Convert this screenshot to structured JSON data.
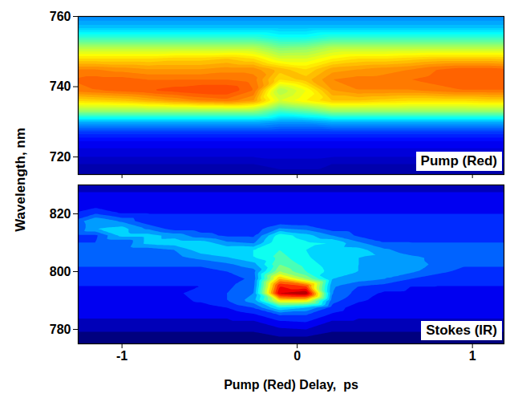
{
  "chart_data": [
    {
      "type": "heatmap",
      "annotation": "Pump (Red)",
      "ylabel": "Wavelength, nm",
      "color": "jet",
      "tick_labels": "y",
      "xlim": [
        -1.25,
        1.18
      ],
      "xticks": [
        -1,
        0,
        1
      ],
      "ylim": [
        715,
        760
      ],
      "yticks": [
        720,
        740,
        760
      ],
      "x": [
        -1.3,
        -1.15,
        -1.0,
        -0.85,
        -0.7,
        -0.55,
        -0.4,
        -0.25,
        -0.1,
        0.05,
        0.2,
        0.35,
        0.5,
        0.65,
        0.8,
        0.95,
        1.1,
        1.25
      ],
      "y": [
        715,
        718,
        721,
        724,
        727,
        730,
        733,
        736,
        739,
        742,
        745,
        748,
        751,
        754,
        757,
        760
      ],
      "values": [
        [
          1.4,
          1.4,
          1.5,
          1.5,
          1.5,
          1.5,
          1.5,
          1.5,
          1.5,
          1.5,
          1.5,
          1.5,
          1.5,
          1.5,
          1.5,
          1.4,
          1.4,
          1.4
        ],
        [
          1.6,
          1.6,
          1.6,
          1.6,
          1.6,
          1.6,
          1.6,
          1.6,
          1.7,
          1.7,
          1.6,
          1.6,
          1.6,
          1.6,
          1.6,
          1.6,
          1.6,
          1.6
        ],
        [
          1.9,
          1.9,
          1.9,
          1.9,
          1.9,
          1.9,
          1.9,
          1.9,
          1.9,
          1.9,
          1.9,
          1.9,
          1.9,
          1.9,
          1.9,
          1.9,
          1.9,
          1.9
        ],
        [
          2.1,
          2.1,
          2.1,
          2.1,
          2.1,
          2.1,
          2.1,
          2.1,
          2.1,
          2.1,
          2.1,
          2.1,
          2.1,
          2.1,
          2.1,
          2.1,
          2.1,
          2.1
        ],
        [
          2.7,
          2.7,
          2.7,
          2.7,
          2.7,
          2.7,
          2.7,
          2.7,
          2.7,
          2.7,
          2.7,
          2.7,
          2.7,
          2.7,
          2.7,
          2.7,
          2.7,
          2.7
        ],
        [
          3.8,
          3.8,
          3.8,
          3.8,
          3.8,
          3.8,
          3.8,
          3.8,
          3.6,
          3.6,
          3.8,
          3.8,
          3.8,
          3.8,
          3.8,
          3.8,
          3.8,
          3.8
        ],
        [
          5.8,
          5.8,
          5.8,
          5.8,
          5.8,
          5.8,
          5.8,
          5.8,
          5.0,
          5.3,
          5.8,
          5.8,
          5.8,
          5.8,
          5.8,
          5.8,
          5.8,
          5.8
        ],
        [
          7.0,
          7.1,
          7.2,
          7.4,
          7.6,
          7.8,
          7.9,
          7.6,
          6.4,
          6.8,
          7.2,
          7.2,
          7.1,
          7.0,
          7.0,
          7.0,
          7.1,
          7.1
        ],
        [
          7.9,
          8.0,
          8.1,
          8.2,
          8.3,
          8.4,
          8.4,
          8.0,
          6.0,
          6.6,
          7.6,
          7.8,
          7.8,
          7.8,
          7.9,
          8.0,
          8.0,
          8.0
        ],
        [
          8.0,
          8.1,
          8.1,
          8.0,
          8.0,
          8.0,
          8.0,
          7.9,
          7.0,
          7.3,
          7.8,
          7.9,
          7.9,
          8.0,
          8.1,
          8.2,
          8.2,
          8.1
        ],
        [
          7.8,
          7.8,
          7.7,
          7.6,
          7.6,
          7.6,
          7.7,
          7.7,
          7.3,
          7.0,
          7.5,
          7.6,
          7.7,
          7.8,
          8.0,
          8.1,
          8.1,
          8.0
        ],
        [
          7.0,
          7.0,
          7.0,
          7.0,
          7.1,
          7.1,
          7.2,
          7.0,
          6.4,
          6.4,
          6.8,
          7.0,
          7.0,
          7.1,
          7.2,
          7.2,
          7.2,
          7.1
        ],
        [
          6.1,
          6.1,
          6.1,
          6.1,
          6.1,
          6.1,
          6.1,
          6.1,
          5.6,
          5.7,
          6.1,
          6.1,
          6.1,
          6.1,
          6.1,
          6.1,
          6.1,
          6.1
        ],
        [
          4.9,
          4.9,
          4.9,
          4.9,
          4.9,
          4.9,
          4.9,
          4.9,
          4.6,
          4.6,
          4.9,
          4.9,
          4.9,
          4.9,
          4.9,
          4.9,
          4.9,
          4.9
        ],
        [
          3.9,
          3.9,
          3.9,
          3.9,
          3.9,
          3.9,
          3.9,
          3.9,
          3.9,
          3.9,
          3.9,
          3.9,
          3.9,
          3.9,
          3.9,
          3.9,
          3.9,
          3.9
        ],
        [
          3.4,
          3.4,
          3.4,
          3.4,
          3.4,
          3.4,
          3.4,
          3.4,
          3.4,
          3.4,
          3.4,
          3.4,
          3.4,
          3.4,
          3.4,
          3.4,
          3.4,
          3.4
        ]
      ]
    },
    {
      "type": "heatmap",
      "annotation": "Stokes (IR)",
      "xlabel": "Pump (Red) Delay,  ps",
      "color": "jet",
      "xlim": [
        -1.25,
        1.18
      ],
      "xticks": [
        -1,
        0,
        1
      ],
      "ylim": [
        775,
        830
      ],
      "yticks": [
        780,
        800,
        820
      ],
      "x": [
        -1.3,
        -1.15,
        -1.0,
        -0.85,
        -0.7,
        -0.55,
        -0.4,
        -0.25,
        -0.1,
        0.05,
        0.2,
        0.35,
        0.5,
        0.65,
        0.8,
        0.95,
        1.1,
        1.25
      ],
      "y": [
        775,
        777.5,
        780,
        782.5,
        785,
        787.5,
        790,
        792.5,
        795,
        797.5,
        800,
        802.5,
        805,
        807.5,
        810,
        812.5,
        815,
        817.5,
        820,
        822.5,
        825,
        827.5,
        830
      ],
      "values": [
        [
          1.0,
          1.0,
          1.0,
          1.0,
          1.0,
          1.0,
          1.0,
          1.0,
          1.2,
          1.2,
          1.0,
          1.0,
          1.0,
          1.0,
          1.0,
          1.0,
          1.0,
          1.0
        ],
        [
          1.3,
          1.3,
          1.3,
          1.3,
          1.3,
          1.3,
          1.3,
          1.3,
          1.5,
          1.5,
          1.3,
          1.3,
          1.3,
          1.3,
          1.3,
          1.3,
          1.3,
          1.3
        ],
        [
          1.6,
          1.6,
          1.6,
          1.6,
          1.6,
          1.6,
          1.6,
          1.6,
          1.9,
          2.0,
          1.6,
          1.6,
          1.6,
          1.6,
          1.6,
          1.6,
          1.6,
          1.6
        ],
        [
          1.9,
          1.9,
          1.9,
          1.9,
          1.9,
          1.9,
          1.9,
          1.9,
          2.4,
          2.5,
          1.9,
          1.9,
          1.9,
          1.9,
          1.9,
          1.9,
          1.9,
          1.9
        ],
        [
          2.1,
          2.1,
          2.1,
          2.1,
          2.1,
          2.1,
          2.1,
          2.4,
          3.0,
          3.0,
          2.4,
          2.1,
          2.1,
          2.1,
          2.1,
          2.1,
          2.1,
          2.1
        ],
        [
          2.2,
          2.2,
          2.2,
          2.2,
          2.2,
          2.2,
          2.5,
          3.0,
          4.5,
          4.0,
          2.8,
          2.2,
          2.2,
          2.2,
          2.2,
          2.2,
          2.2,
          2.2
        ],
        [
          2.3,
          2.3,
          2.3,
          2.3,
          2.3,
          2.6,
          3.0,
          3.8,
          7.0,
          7.0,
          3.2,
          2.6,
          2.3,
          2.3,
          2.3,
          2.3,
          2.3,
          2.3
        ],
        [
          2.4,
          2.4,
          2.4,
          2.4,
          2.4,
          2.7,
          3.0,
          3.5,
          9.5,
          10.0,
          3.5,
          2.8,
          2.4,
          2.4,
          2.4,
          2.4,
          2.4,
          2.4
        ],
        [
          2.5,
          2.5,
          2.5,
          2.5,
          2.5,
          2.5,
          2.9,
          3.3,
          9.0,
          8.5,
          3.6,
          3.0,
          2.8,
          2.5,
          2.5,
          2.5,
          2.5,
          2.5
        ],
        [
          2.6,
          2.6,
          2.6,
          2.6,
          2.6,
          2.6,
          2.6,
          3.2,
          7.5,
          6.0,
          4.0,
          3.8,
          3.5,
          3.0,
          2.6,
          2.6,
          2.6,
          2.6
        ],
        [
          2.8,
          2.8,
          2.8,
          2.8,
          2.8,
          2.8,
          3.0,
          3.3,
          6.0,
          5.0,
          4.3,
          4.0,
          3.6,
          3.6,
          3.2,
          2.8,
          2.8,
          2.8
        ],
        [
          3.1,
          3.1,
          3.1,
          3.1,
          3.1,
          3.1,
          3.4,
          3.8,
          5.5,
          4.8,
          4.2,
          4.0,
          3.9,
          3.7,
          3.4,
          3.1,
          3.1,
          3.1
        ],
        [
          3.4,
          3.4,
          3.4,
          3.4,
          3.4,
          3.7,
          4.0,
          4.5,
          5.2,
          4.6,
          4.0,
          4.0,
          3.9,
          3.6,
          3.4,
          3.4,
          3.4,
          3.4
        ],
        [
          3.2,
          3.2,
          3.2,
          3.2,
          3.5,
          4.3,
          4.4,
          4.5,
          5.0,
          4.5,
          4.3,
          4.2,
          3.6,
          3.2,
          3.2,
          3.2,
          3.2,
          3.2
        ],
        [
          3.0,
          3.0,
          3.0,
          4.2,
          4.3,
          4.3,
          3.6,
          3.4,
          5.0,
          4.6,
          4.5,
          3.6,
          3.0,
          3.0,
          3.0,
          3.0,
          3.0,
          3.0
        ],
        [
          2.9,
          2.9,
          4.2,
          4.2,
          3.8,
          3.2,
          2.9,
          2.9,
          4.8,
          4.2,
          3.5,
          2.9,
          2.9,
          2.9,
          2.9,
          2.9,
          2.9,
          2.9
        ],
        [
          2.7,
          4.0,
          4.2,
          3.4,
          2.7,
          2.7,
          2.7,
          2.7,
          3.5,
          3.3,
          2.7,
          2.7,
          2.7,
          2.7,
          2.7,
          2.7,
          2.7,
          2.7
        ],
        [
          2.9,
          4.0,
          3.4,
          2.6,
          2.6,
          2.6,
          2.6,
          2.6,
          2.6,
          2.6,
          2.6,
          2.6,
          2.6,
          2.6,
          2.6,
          2.6,
          2.6,
          2.6
        ],
        [
          2.5,
          3.0,
          2.5,
          2.5,
          2.5,
          2.5,
          2.5,
          2.5,
          2.5,
          2.5,
          2.5,
          2.5,
          2.5,
          2.5,
          2.5,
          2.5,
          2.5,
          2.5
        ],
        [
          2.4,
          2.4,
          2.4,
          2.4,
          2.4,
          2.4,
          2.4,
          2.4,
          2.4,
          2.4,
          2.4,
          2.4,
          2.4,
          2.4,
          2.4,
          2.4,
          2.4,
          2.4
        ],
        [
          2.2,
          2.2,
          2.2,
          2.2,
          2.2,
          2.2,
          2.2,
          2.2,
          2.2,
          2.2,
          2.2,
          2.2,
          2.2,
          2.2,
          2.2,
          2.2,
          2.2,
          2.2
        ],
        [
          2.0,
          2.0,
          2.0,
          2.0,
          2.0,
          2.0,
          2.0,
          2.0,
          2.0,
          2.0,
          2.0,
          2.0,
          2.0,
          2.0,
          2.0,
          2.0,
          2.0,
          2.0
        ],
        [
          1.8,
          1.8,
          1.8,
          1.8,
          1.8,
          1.8,
          1.8,
          1.8,
          1.8,
          1.8,
          1.8,
          1.8,
          1.8,
          1.8,
          1.8,
          1.8,
          1.8,
          1.8
        ]
      ]
    }
  ]
}
